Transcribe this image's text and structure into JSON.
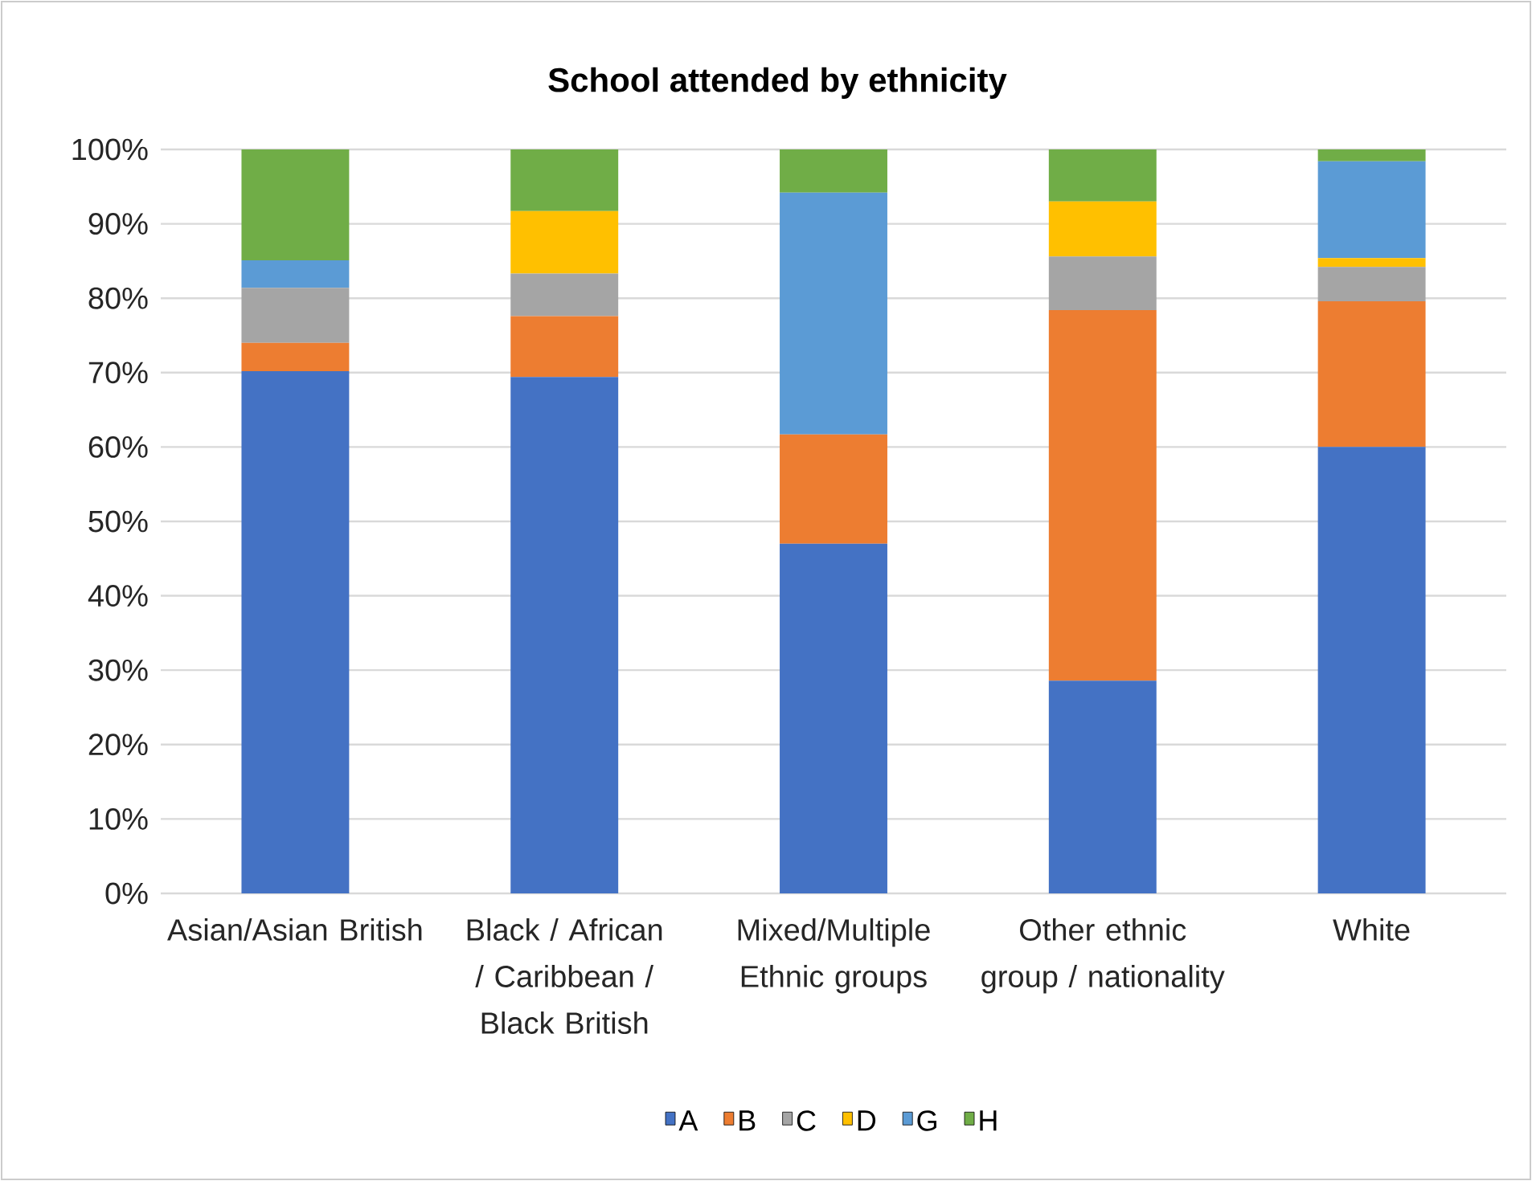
{
  "chart_data": {
    "type": "bar",
    "title": "School attended by ethnicity",
    "stacked": true,
    "categories": [
      "Asian/Asian British",
      "Black / African / Caribbean / Black British",
      "Mixed/Multiple Ethnic groups",
      "Other ethnic group / nationality",
      "White"
    ],
    "series": [
      {
        "name": "A",
        "color": "#4472c4",
        "values": [
          70.2,
          69.4,
          47.0,
          28.6,
          60.0
        ]
      },
      {
        "name": "B",
        "color": "#ed7d31",
        "values": [
          3.8,
          8.2,
          14.7,
          49.8,
          19.6
        ]
      },
      {
        "name": "C",
        "color": "#a5a5a5",
        "values": [
          7.4,
          5.7,
          0,
          7.2,
          4.6
        ]
      },
      {
        "name": "D",
        "color": "#ffc000",
        "values": [
          0,
          8.4,
          0,
          7.4,
          1.2
        ]
      },
      {
        "name": "G",
        "color": "#5b9bd5",
        "values": [
          3.7,
          0,
          32.5,
          0,
          13.0
        ]
      },
      {
        "name": "H",
        "color": "#70ad47",
        "values": [
          14.9,
          8.3,
          5.8,
          7.0,
          1.6
        ]
      }
    ],
    "ylim": [
      0,
      100
    ],
    "yticks": [
      {
        "value": 0,
        "label": "0%"
      },
      {
        "value": 10,
        "label": "10%"
      },
      {
        "value": 20,
        "label": "20%"
      },
      {
        "value": 30,
        "label": "30%"
      },
      {
        "value": 40,
        "label": "40%"
      },
      {
        "value": 50,
        "label": "50%"
      },
      {
        "value": 60,
        "label": "60%"
      },
      {
        "value": 70,
        "label": "70%"
      },
      {
        "value": 80,
        "label": "80%"
      },
      {
        "value": 90,
        "label": "90%"
      },
      {
        "value": 100,
        "label": "100%"
      }
    ],
    "grid": "y",
    "legend": "bottom"
  }
}
